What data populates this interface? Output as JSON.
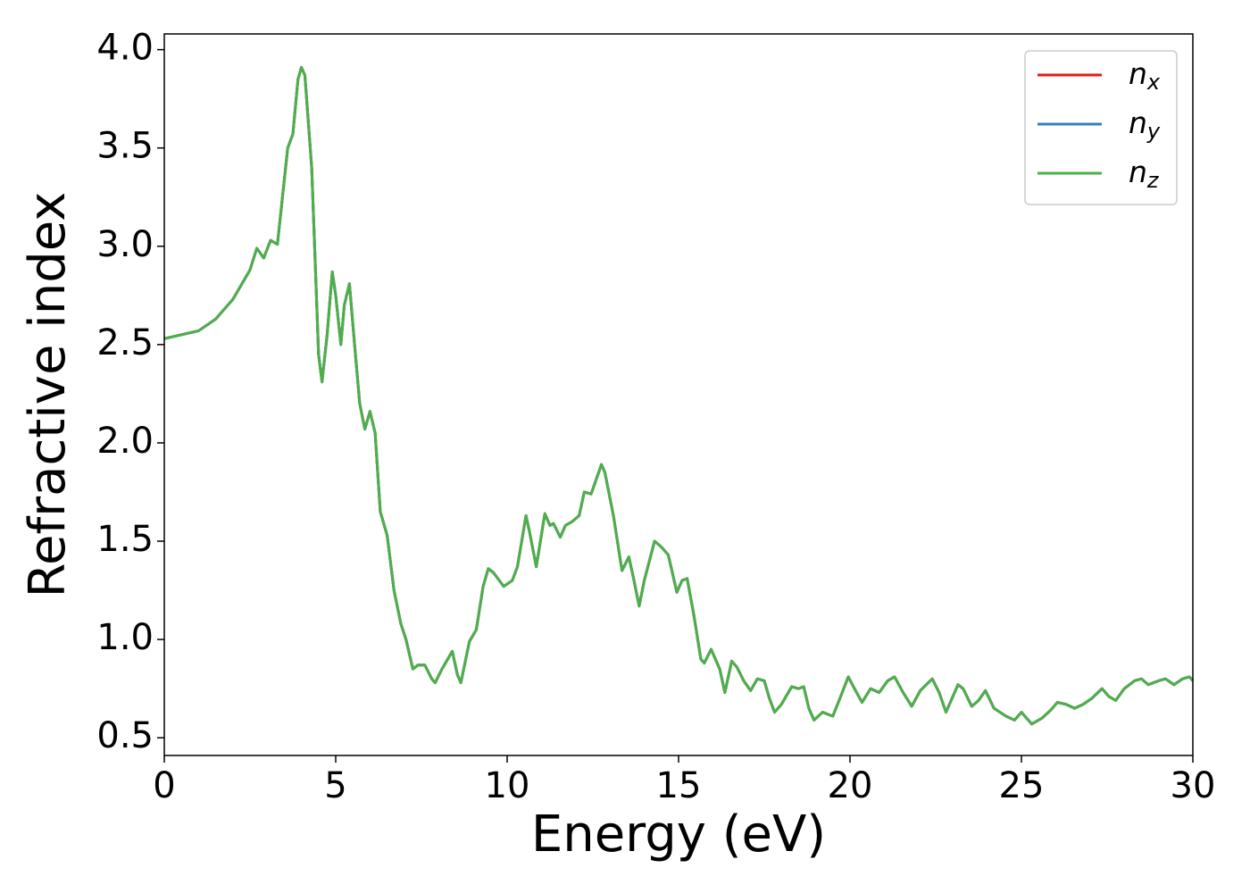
{
  "chart_data": {
    "type": "line",
    "xlabel": "Energy (eV)",
    "ylabel": "Refractive index",
    "x": [
      0,
      1,
      1.5,
      2,
      2.5,
      2.7,
      2.9,
      3.1,
      3.3,
      3.6,
      3.75,
      3.9,
      4.0,
      4.1,
      4.3,
      4.5,
      4.6,
      4.75,
      4.9,
      5.0,
      5.15,
      5.25,
      5.4,
      5.55,
      5.7,
      5.85,
      6.0,
      6.15,
      6.3,
      6.5,
      6.7,
      6.9,
      7.05,
      7.25,
      7.4,
      7.6,
      7.8,
      7.9,
      8.1,
      8.4,
      8.55,
      8.65,
      8.9,
      9.1,
      9.3,
      9.45,
      9.6,
      9.9,
      10.15,
      10.3,
      10.55,
      10.65,
      10.85,
      11.1,
      11.25,
      11.35,
      11.55,
      11.7,
      11.9,
      12.1,
      12.25,
      12.45,
      12.75,
      12.85,
      13.1,
      13.35,
      13.55,
      13.7,
      13.85,
      14.0,
      14.3,
      14.5,
      14.7,
      14.95,
      15.1,
      15.25,
      15.45,
      15.65,
      15.75,
      15.95,
      16.2,
      16.35,
      16.55,
      16.7,
      16.9,
      17.1,
      17.3,
      17.5,
      17.65,
      17.8,
      18.0,
      18.3,
      18.5,
      18.65,
      18.8,
      18.95,
      19.2,
      19.5,
      19.75,
      19.95,
      20.1,
      20.35,
      20.6,
      20.85,
      21.1,
      21.3,
      21.55,
      21.8,
      22.05,
      22.4,
      22.6,
      22.8,
      23.15,
      23.3,
      23.55,
      23.75,
      23.95,
      24.2,
      24.55,
      24.8,
      25.0,
      25.3,
      25.6,
      25.85,
      26.05,
      26.3,
      26.55,
      26.8,
      27.05,
      27.35,
      27.55,
      27.75,
      28.0,
      28.3,
      28.5,
      28.7,
      29.0,
      29.2,
      29.45,
      29.7,
      29.9,
      30
    ],
    "series": [
      {
        "name": "nx",
        "color": "#e41a1c",
        "values": [
          2.53,
          2.57,
          2.63,
          2.73,
          2.88,
          2.99,
          2.94,
          3.03,
          3.01,
          3.5,
          3.57,
          3.85,
          3.91,
          3.87,
          3.4,
          2.45,
          2.31,
          2.55,
          2.87,
          2.75,
          2.5,
          2.7,
          2.81,
          2.5,
          2.2,
          2.07,
          2.16,
          2.05,
          1.65,
          1.53,
          1.25,
          1.08,
          1.0,
          0.85,
          0.87,
          0.87,
          0.8,
          0.78,
          0.85,
          0.94,
          0.82,
          0.78,
          0.99,
          1.05,
          1.27,
          1.36,
          1.34,
          1.27,
          1.3,
          1.37,
          1.63,
          1.55,
          1.37,
          1.64,
          1.58,
          1.59,
          1.52,
          1.58,
          1.6,
          1.63,
          1.75,
          1.74,
          1.89,
          1.85,
          1.63,
          1.35,
          1.42,
          1.3,
          1.17,
          1.3,
          1.5,
          1.47,
          1.43,
          1.24,
          1.3,
          1.31,
          1.12,
          0.9,
          0.88,
          0.95,
          0.85,
          0.73,
          0.89,
          0.86,
          0.79,
          0.74,
          0.8,
          0.79,
          0.7,
          0.63,
          0.67,
          0.76,
          0.75,
          0.76,
          0.65,
          0.59,
          0.63,
          0.61,
          0.72,
          0.81,
          0.76,
          0.68,
          0.75,
          0.73,
          0.79,
          0.81,
          0.73,
          0.66,
          0.74,
          0.8,
          0.73,
          0.63,
          0.77,
          0.75,
          0.66,
          0.69,
          0.74,
          0.65,
          0.61,
          0.59,
          0.63,
          0.57,
          0.6,
          0.64,
          0.68,
          0.67,
          0.65,
          0.67,
          0.7,
          0.75,
          0.71,
          0.69,
          0.75,
          0.79,
          0.8,
          0.77,
          0.79,
          0.8,
          0.77,
          0.8,
          0.81,
          0.79
        ]
      },
      {
        "name": "ny",
        "color": "#377eb8",
        "values": [
          2.53,
          2.57,
          2.63,
          2.73,
          2.88,
          2.99,
          2.94,
          3.03,
          3.01,
          3.5,
          3.57,
          3.85,
          3.91,
          3.87,
          3.4,
          2.45,
          2.31,
          2.55,
          2.87,
          2.75,
          2.5,
          2.7,
          2.81,
          2.5,
          2.2,
          2.07,
          2.16,
          2.05,
          1.65,
          1.53,
          1.25,
          1.08,
          1.0,
          0.85,
          0.87,
          0.87,
          0.8,
          0.78,
          0.85,
          0.94,
          0.82,
          0.78,
          0.99,
          1.05,
          1.27,
          1.36,
          1.34,
          1.27,
          1.3,
          1.37,
          1.63,
          1.55,
          1.37,
          1.64,
          1.58,
          1.59,
          1.52,
          1.58,
          1.6,
          1.63,
          1.75,
          1.74,
          1.89,
          1.85,
          1.63,
          1.35,
          1.42,
          1.3,
          1.17,
          1.3,
          1.5,
          1.47,
          1.43,
          1.24,
          1.3,
          1.31,
          1.12,
          0.9,
          0.88,
          0.95,
          0.85,
          0.73,
          0.89,
          0.86,
          0.79,
          0.74,
          0.8,
          0.79,
          0.7,
          0.63,
          0.67,
          0.76,
          0.75,
          0.76,
          0.65,
          0.59,
          0.63,
          0.61,
          0.72,
          0.81,
          0.76,
          0.68,
          0.75,
          0.73,
          0.79,
          0.81,
          0.73,
          0.66,
          0.74,
          0.8,
          0.73,
          0.63,
          0.77,
          0.75,
          0.66,
          0.69,
          0.74,
          0.65,
          0.61,
          0.59,
          0.63,
          0.57,
          0.6,
          0.64,
          0.68,
          0.67,
          0.65,
          0.67,
          0.7,
          0.75,
          0.71,
          0.69,
          0.75,
          0.79,
          0.8,
          0.77,
          0.79,
          0.8,
          0.77,
          0.8,
          0.81,
          0.79
        ]
      },
      {
        "name": "nz",
        "color": "#4daf4a",
        "values": [
          2.53,
          2.57,
          2.63,
          2.73,
          2.88,
          2.99,
          2.94,
          3.03,
          3.01,
          3.5,
          3.57,
          3.85,
          3.91,
          3.87,
          3.4,
          2.45,
          2.31,
          2.55,
          2.87,
          2.75,
          2.5,
          2.7,
          2.81,
          2.5,
          2.2,
          2.07,
          2.16,
          2.05,
          1.65,
          1.53,
          1.25,
          1.08,
          1.0,
          0.85,
          0.87,
          0.87,
          0.8,
          0.78,
          0.85,
          0.94,
          0.82,
          0.78,
          0.99,
          1.05,
          1.27,
          1.36,
          1.34,
          1.27,
          1.3,
          1.37,
          1.63,
          1.55,
          1.37,
          1.64,
          1.58,
          1.59,
          1.52,
          1.58,
          1.6,
          1.63,
          1.75,
          1.74,
          1.89,
          1.85,
          1.63,
          1.35,
          1.42,
          1.3,
          1.17,
          1.3,
          1.5,
          1.47,
          1.43,
          1.24,
          1.3,
          1.31,
          1.12,
          0.9,
          0.88,
          0.95,
          0.85,
          0.73,
          0.89,
          0.86,
          0.79,
          0.74,
          0.8,
          0.79,
          0.7,
          0.63,
          0.67,
          0.76,
          0.75,
          0.76,
          0.65,
          0.59,
          0.63,
          0.61,
          0.72,
          0.81,
          0.76,
          0.68,
          0.75,
          0.73,
          0.79,
          0.81,
          0.73,
          0.66,
          0.74,
          0.8,
          0.73,
          0.63,
          0.77,
          0.75,
          0.66,
          0.69,
          0.74,
          0.65,
          0.61,
          0.59,
          0.63,
          0.57,
          0.6,
          0.64,
          0.68,
          0.67,
          0.65,
          0.67,
          0.7,
          0.75,
          0.71,
          0.69,
          0.75,
          0.79,
          0.8,
          0.77,
          0.79,
          0.8,
          0.77,
          0.8,
          0.81,
          0.79
        ]
      }
    ],
    "xlim": [
      0,
      30
    ],
    "xticks": [
      0,
      5,
      10,
      15,
      20,
      25,
      30
    ],
    "ylim": [
      0.41,
      4.08
    ],
    "yticks": [
      0.5,
      {
        "value": 1,
        "label": "1.0"
      },
      1.5,
      {
        "value": 2,
        "label": "2.0"
      },
      2.5,
      {
        "value": 3,
        "label": "3.0"
      },
      3.5,
      {
        "value": 4,
        "label": "4.0"
      }
    ],
    "grid": false,
    "legend": "upper right"
  }
}
